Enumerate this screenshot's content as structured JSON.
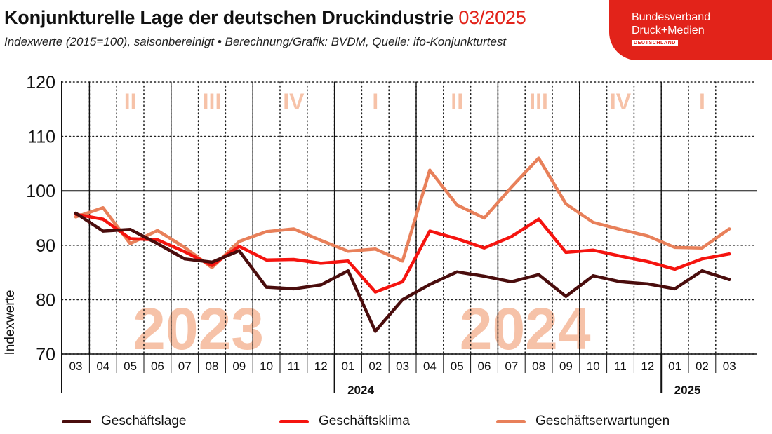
{
  "header": {
    "title": "Konjunkturelle Lage der deutschen Druckindustrie",
    "title_date": "03/2025",
    "subtitle": "Indexwerte (2015=100), saisonbereinigt • Berechnung/Grafik: BVDM, Quelle: ifo-Konjunkturtest"
  },
  "logo": {
    "line1": "Bundesverband",
    "line2": "Druck+Medien",
    "line3": "DEUTSCHLAND"
  },
  "colors": {
    "accent": "#e2231a",
    "lage": "#4a0d0d",
    "klima": "#f5140f",
    "erwartungen": "#e8805a",
    "watermark": "#f6c2a8"
  },
  "chart_data": {
    "type": "line",
    "ylabel": "Indexwerte",
    "ylim": [
      70,
      120
    ],
    "yticks": [
      70,
      80,
      90,
      100,
      110,
      120
    ],
    "reference_line": 100,
    "grid": true,
    "legend_position": "bottom",
    "categories": [
      "03",
      "04",
      "05",
      "06",
      "07",
      "08",
      "09",
      "10",
      "11",
      "12",
      "01",
      "02",
      "03",
      "04",
      "05",
      "06",
      "07",
      "08",
      "09",
      "10",
      "11",
      "12",
      "01",
      "02",
      "03"
    ],
    "year_labels": [
      {
        "text": "2024",
        "at_index": 10
      },
      {
        "text": "2025",
        "at_index": 22
      }
    ],
    "quarter_labels": [
      {
        "text": "II",
        "at_index": 2
      },
      {
        "text": "III",
        "at_index": 5
      },
      {
        "text": "IV",
        "at_index": 8
      },
      {
        "text": "I",
        "at_index": 11
      },
      {
        "text": "II",
        "at_index": 14
      },
      {
        "text": "III",
        "at_index": 17
      },
      {
        "text": "IV",
        "at_index": 20
      },
      {
        "text": "I",
        "at_index": 23
      }
    ],
    "watermarks": [
      {
        "text": "2023",
        "at_index": 4.5
      },
      {
        "text": "2024",
        "at_index": 16.5
      }
    ],
    "series": [
      {
        "name": "Geschäftslage",
        "color_key": "lage",
        "values": [
          95.9,
          92.6,
          92.9,
          90.3,
          87.5,
          86.9,
          89.0,
          82.3,
          82.0,
          82.7,
          85.3,
          74.2,
          80.0,
          82.8,
          85.1,
          84.3,
          83.3,
          84.6,
          80.6,
          84.4,
          83.3,
          82.9,
          82.0,
          85.3,
          83.7
        ]
      },
      {
        "name": "Geschäftsklima",
        "color_key": "klima",
        "values": [
          95.7,
          94.8,
          91.2,
          91.0,
          88.8,
          86.3,
          89.8,
          87.3,
          87.4,
          86.7,
          87.1,
          81.4,
          83.3,
          92.6,
          91.2,
          89.5,
          91.6,
          94.8,
          88.7,
          89.1,
          88.0,
          87.0,
          85.6,
          87.5,
          88.4
        ]
      },
      {
        "name": "Geschäftserwartungen",
        "color_key": "erwartungen",
        "values": [
          95.2,
          96.9,
          90.3,
          92.7,
          89.6,
          85.9,
          90.7,
          92.5,
          93.0,
          90.9,
          88.9,
          89.3,
          87.1,
          103.8,
          97.4,
          95.0,
          100.7,
          106.0,
          97.6,
          94.2,
          92.9,
          91.7,
          89.6,
          89.5,
          93.0
        ]
      }
    ]
  }
}
